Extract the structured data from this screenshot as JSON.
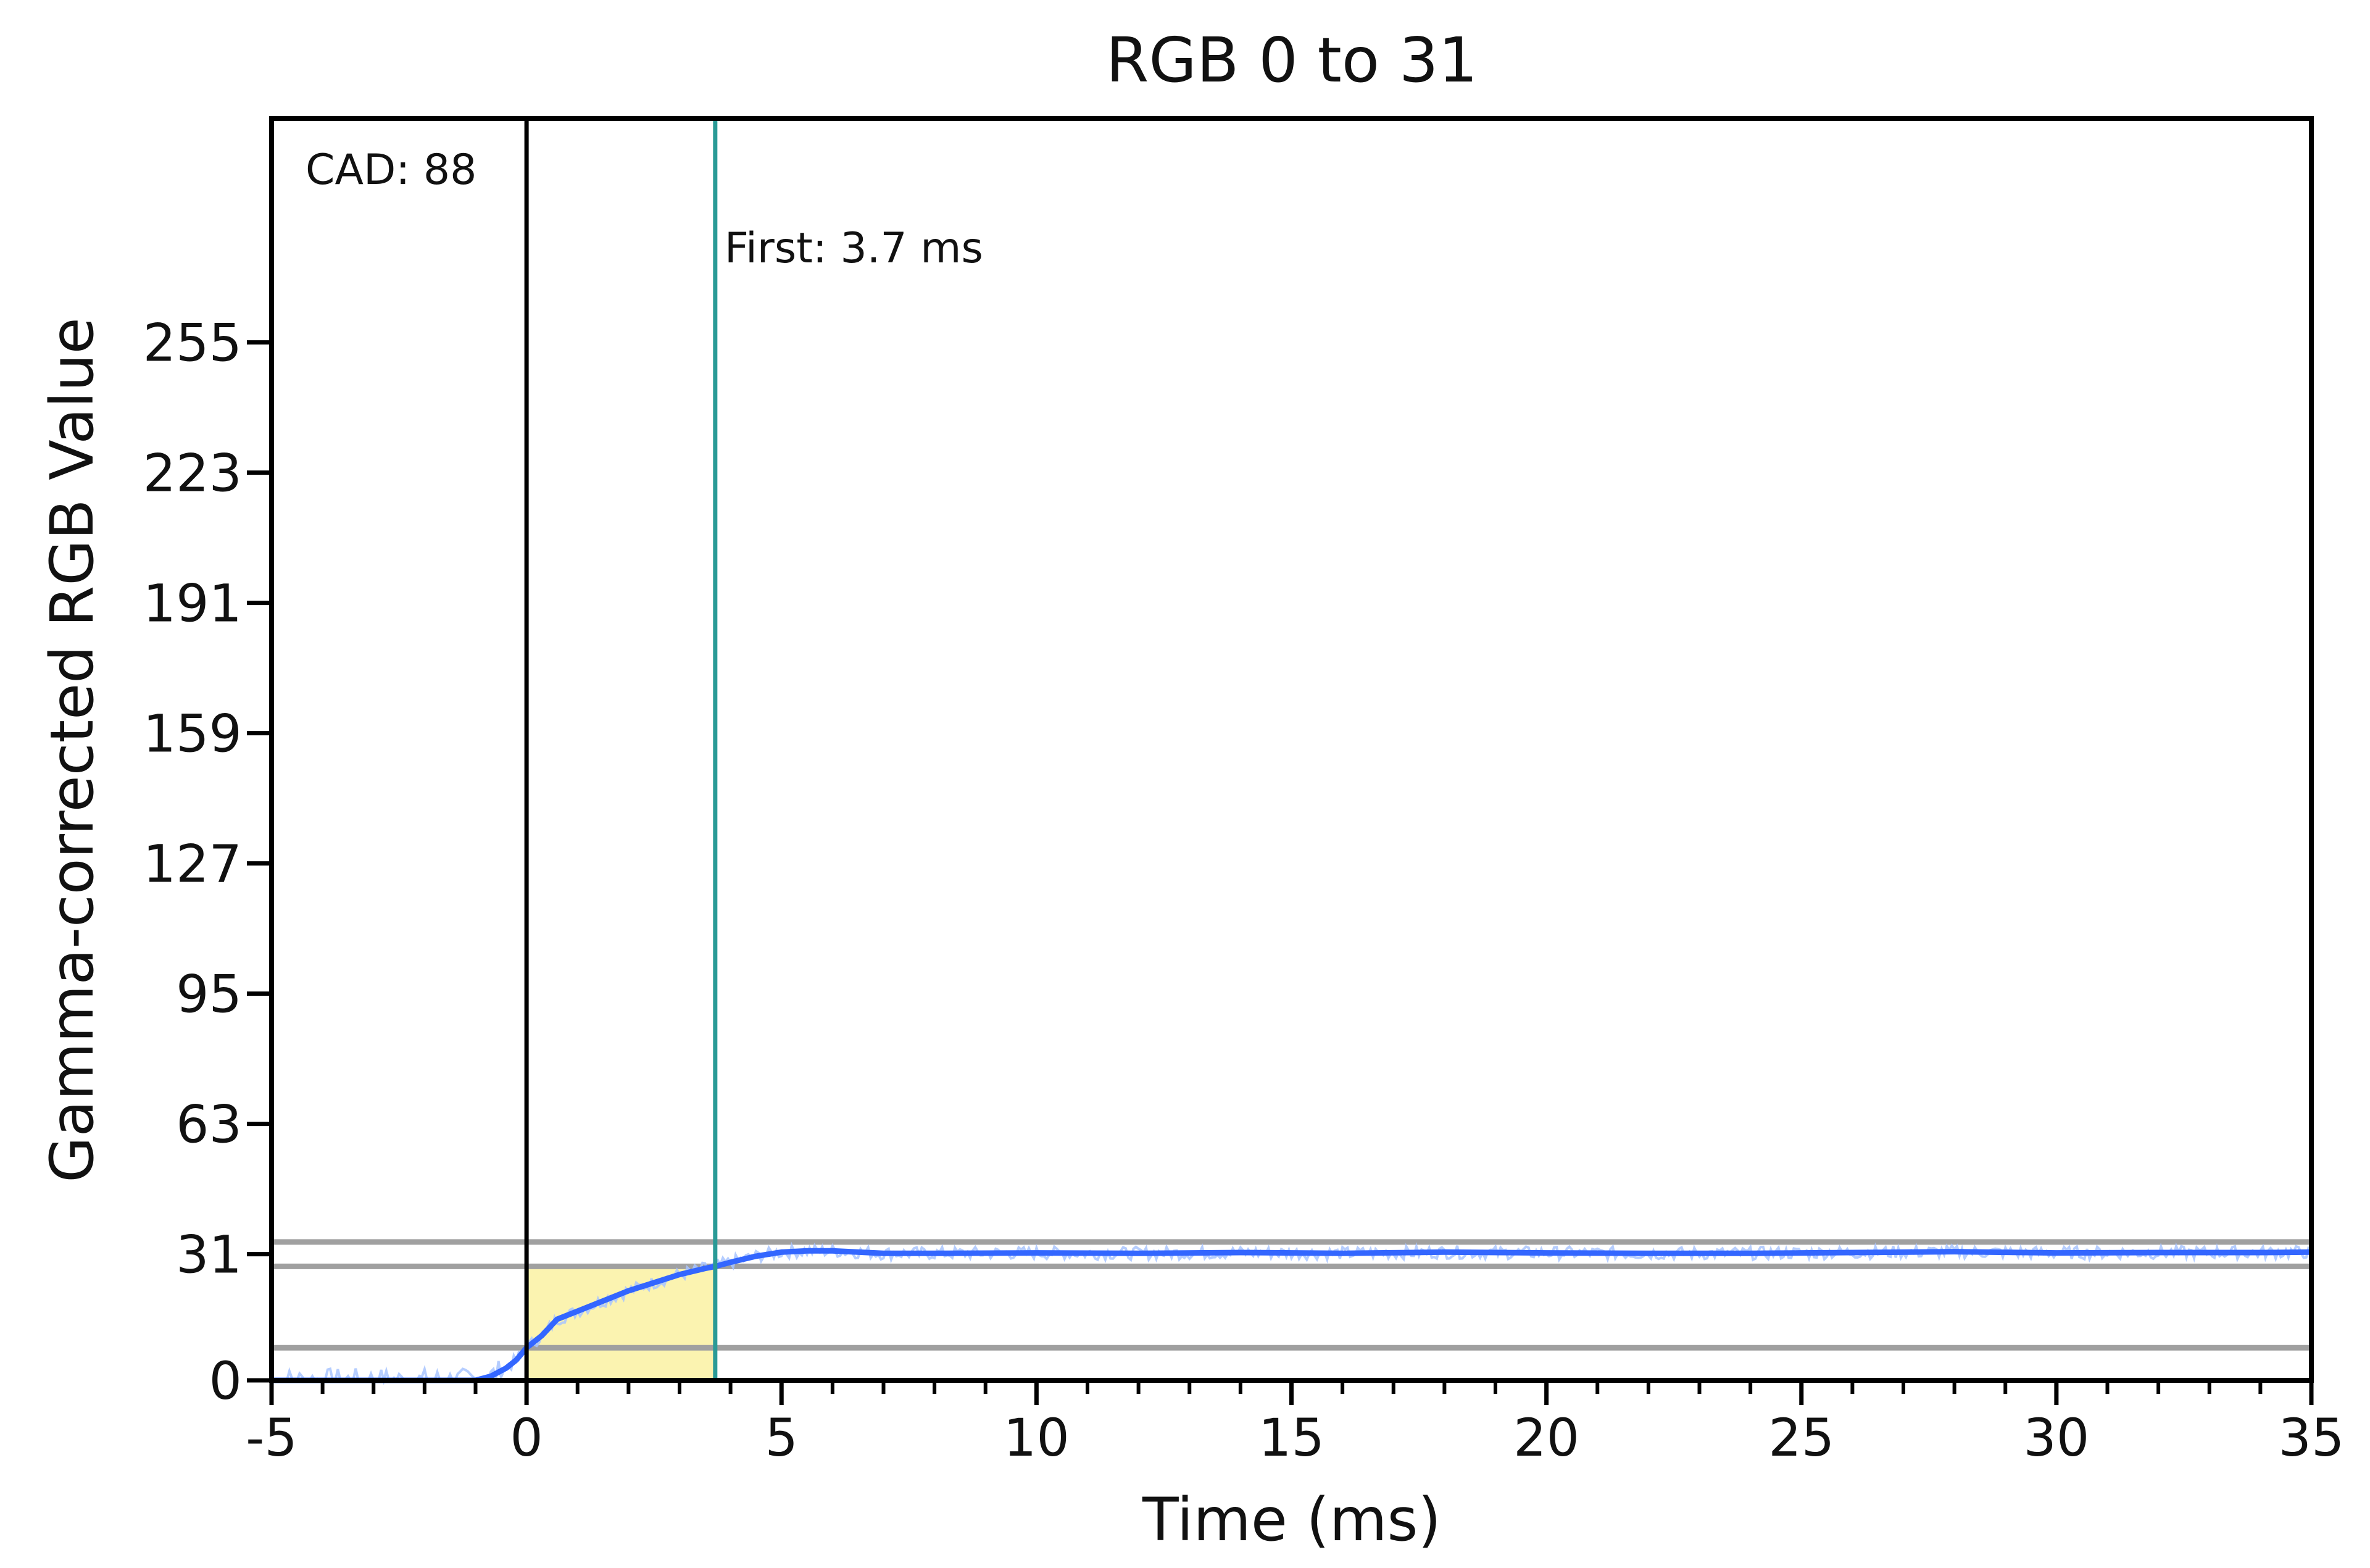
{
  "chart_data": {
    "type": "line",
    "title": "RGB 0 to 31",
    "xlabel": "Time (ms)",
    "ylabel": "Gamma-corrected RGB Value",
    "xlim": [
      -5,
      35
    ],
    "ylim": [
      0,
      310
    ],
    "x_ticks": [
      -5,
      0,
      5,
      10,
      15,
      20,
      25,
      30,
      35
    ],
    "x_tick_labels": [
      "-5",
      "0",
      "5",
      "10",
      "15",
      "20",
      "25",
      "30",
      "35"
    ],
    "x_minor_step": 1,
    "y_ticks": [
      0,
      31,
      63,
      95,
      127,
      159,
      191,
      223,
      255
    ],
    "y_tick_labels": [
      "0",
      "31",
      "63",
      "95",
      "127",
      "159",
      "191",
      "223",
      "255"
    ],
    "grid": false,
    "reference_lines": {
      "horizontal": [
        8,
        28,
        34
      ],
      "horizontal_color": "#a0a0a0",
      "start_x": 0,
      "start_color": "#000000",
      "first_x": 3.7,
      "first_color": "#2a9a96"
    },
    "annotations": {
      "cad": "CAD: 88",
      "first": "First: 3.7 ms"
    },
    "highlight": {
      "x_from": 0,
      "x_to": 3.7,
      "top": 28,
      "color": "#fbf3b0"
    },
    "series": [
      {
        "color": "#3366ff",
        "raw_color": "#a8c4ff",
        "points": [
          [
            -5,
            0
          ],
          [
            -1.5,
            0
          ],
          [
            -1,
            0
          ],
          [
            -0.7,
            1
          ],
          [
            -0.4,
            3
          ],
          [
            -0.2,
            5
          ],
          [
            0,
            8
          ],
          [
            0.3,
            11
          ],
          [
            0.6,
            15
          ],
          [
            1,
            17
          ],
          [
            1.5,
            19.5
          ],
          [
            2,
            22
          ],
          [
            2.5,
            24
          ],
          [
            3,
            26
          ],
          [
            3.5,
            27.5
          ],
          [
            3.7,
            28
          ],
          [
            4,
            29
          ],
          [
            4.5,
            30.5
          ],
          [
            5,
            31.5
          ],
          [
            5.5,
            31.8
          ],
          [
            6,
            31.8
          ],
          [
            7,
            31.2
          ],
          [
            8,
            31.2
          ],
          [
            10,
            31.3
          ],
          [
            12,
            31.2
          ],
          [
            14,
            31.4
          ],
          [
            16,
            31.2
          ],
          [
            18,
            31.5
          ],
          [
            20,
            31.3
          ],
          [
            22,
            31.2
          ],
          [
            24,
            31.2
          ],
          [
            26,
            31.4
          ],
          [
            28,
            31.6
          ],
          [
            30,
            31.3
          ],
          [
            32,
            31.4
          ],
          [
            34,
            31.4
          ],
          [
            35,
            31.5
          ]
        ]
      }
    ]
  }
}
